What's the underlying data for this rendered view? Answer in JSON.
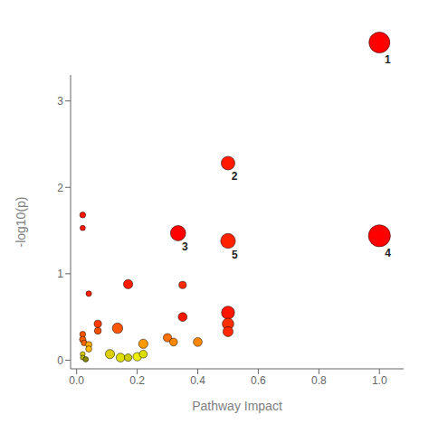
{
  "chart_data": {
    "type": "scatter",
    "xlabel": "Pathway Impact",
    "ylabel": "-log10(p)",
    "xlim": [
      -0.02,
      1.08
    ],
    "ylim": [
      -0.1,
      3.3
    ],
    "xticks": [
      {
        "value": 0.0,
        "label": "0.0"
      },
      0.2,
      0.4,
      0.6,
      0.8,
      {
        "value": 1.0,
        "label": "1.0"
      }
    ],
    "yticks": [
      0,
      1,
      2,
      3
    ],
    "grid": false,
    "points": [
      {
        "x": 0.5,
        "y": 2.28,
        "size": 120,
        "color": "#FF1A00",
        "label": "2"
      },
      {
        "x": 0.335,
        "y": 1.47,
        "size": 150,
        "color": "#FF0000",
        "label": "3"
      },
      {
        "x": 1.0,
        "y": 1.44,
        "size": 310,
        "color": "#FF0000",
        "label": "4"
      },
      {
        "x": 0.5,
        "y": 1.38,
        "size": 140,
        "color": "#FF2200",
        "label": "5"
      },
      {
        "x": 0.02,
        "y": 1.68,
        "size": 22,
        "color": "#FF1500"
      },
      {
        "x": 0.02,
        "y": 1.53,
        "size": 18,
        "color": "#FF1800"
      },
      {
        "x": 0.04,
        "y": 0.77,
        "size": 20,
        "color": "#FF2000"
      },
      {
        "x": 0.17,
        "y": 0.88,
        "size": 55,
        "color": "#FF1A00"
      },
      {
        "x": 0.35,
        "y": 0.87,
        "size": 35,
        "color": "#FF2800"
      },
      {
        "x": 0.5,
        "y": 0.55,
        "size": 110,
        "color": "#FF1500"
      },
      {
        "x": 0.5,
        "y": 0.42,
        "size": 85,
        "color": "#FF3000"
      },
      {
        "x": 0.5,
        "y": 0.33,
        "size": 65,
        "color": "#FF2800"
      },
      {
        "x": 0.35,
        "y": 0.5,
        "size": 50,
        "color": "#FF1500"
      },
      {
        "x": 0.07,
        "y": 0.42,
        "size": 35,
        "color": "#FF3A00"
      },
      {
        "x": 0.07,
        "y": 0.34,
        "size": 30,
        "color": "#FF5000"
      },
      {
        "x": 0.135,
        "y": 0.37,
        "size": 70,
        "color": "#FF5500"
      },
      {
        "x": 0.3,
        "y": 0.26,
        "size": 45,
        "color": "#FF7000"
      },
      {
        "x": 0.02,
        "y": 0.3,
        "size": 22,
        "color": "#FF5500"
      },
      {
        "x": 0.02,
        "y": 0.24,
        "size": 26,
        "color": "#FF6000"
      },
      {
        "x": 0.025,
        "y": 0.2,
        "size": 22,
        "color": "#FF6800"
      },
      {
        "x": 0.04,
        "y": 0.18,
        "size": 26,
        "color": "#FFAA00"
      },
      {
        "x": 0.04,
        "y": 0.13,
        "size": 24,
        "color": "#FFBB00"
      },
      {
        "x": 0.02,
        "y": 0.07,
        "size": 16,
        "color": "#DDCC00"
      },
      {
        "x": 0.02,
        "y": 0.03,
        "size": 14,
        "color": "#BBBB00"
      },
      {
        "x": 0.03,
        "y": 0.01,
        "size": 18,
        "color": "#888800"
      },
      {
        "x": 0.11,
        "y": 0.07,
        "size": 55,
        "color": "#DDCC00"
      },
      {
        "x": 0.145,
        "y": 0.03,
        "size": 50,
        "color": "#DDDD00"
      },
      {
        "x": 0.17,
        "y": 0.03,
        "size": 36,
        "color": "#CCCC00"
      },
      {
        "x": 0.2,
        "y": 0.04,
        "size": 46,
        "color": "#EEEE00"
      },
      {
        "x": 0.22,
        "y": 0.07,
        "size": 40,
        "color": "#DDDD00"
      },
      {
        "x": 0.22,
        "y": 0.19,
        "size": 55,
        "color": "#FF9900"
      },
      {
        "x": 0.32,
        "y": 0.21,
        "size": 40,
        "color": "#FF8800"
      },
      {
        "x": 0.4,
        "y": 0.21,
        "size": 50,
        "color": "#FF8800"
      },
      {
        "x": 1.0,
        "y": null,
        "size": 280,
        "color": "#FF0000",
        "label": "1"
      }
    ]
  }
}
